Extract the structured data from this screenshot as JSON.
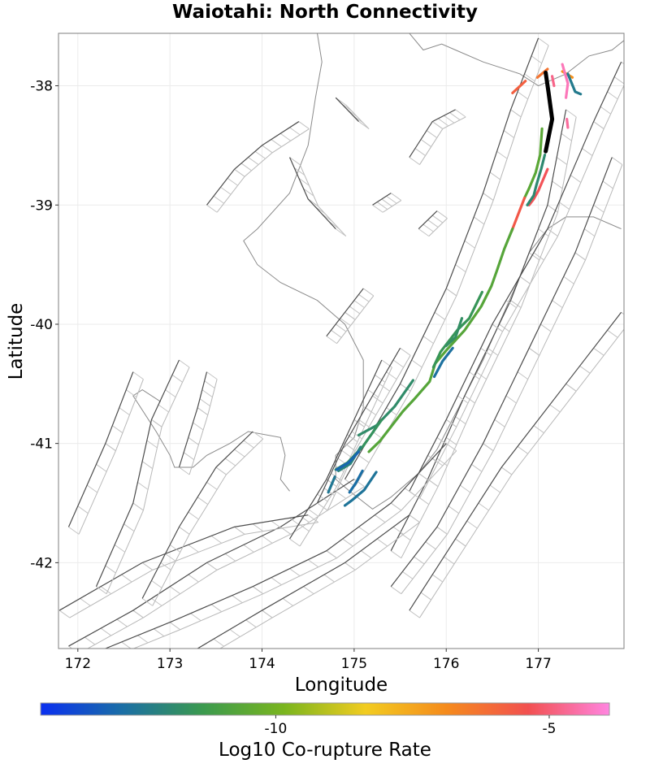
{
  "chart_data": {
    "type": "map",
    "title": "Waiotahi: North Connectivity",
    "xlabel": "Longitude",
    "ylabel": "Latitude",
    "xlim": [
      171.79,
      177.93
    ],
    "ylim": [
      -42.72,
      -37.56
    ],
    "x_ticks": [
      172,
      173,
      174,
      175,
      176,
      177
    ],
    "y_ticks": [
      -38,
      -39,
      -40,
      -41,
      -42
    ],
    "x_tick_labels": [
      "172",
      "173",
      "174",
      "175",
      "176",
      "177"
    ],
    "y_tick_labels": [
      "-38",
      "-39",
      "-40",
      "-41",
      "-42"
    ],
    "grid": true,
    "colorbar": {
      "title": "Log10 Co-rupture Rate",
      "range": [
        -14.3,
        -3.9
      ],
      "ticks": [
        -10,
        -5
      ],
      "tick_labels": [
        "-10",
        "-5"
      ],
      "colors": [
        "#0a2ff0",
        "#1a6ea6",
        "#3b9a4e",
        "#7ab51e",
        "#f2cc20",
        "#f58a1c",
        "#f25050",
        "#ff85e0"
      ]
    },
    "source_fault": {
      "name": "Waiotahi",
      "points": [
        [
          177.08,
          -37.89
        ],
        [
          177.11,
          -38.05
        ],
        [
          177.15,
          -38.28
        ],
        [
          177.08,
          -38.55
        ]
      ]
    },
    "corupture_faults": [
      {
        "rate": -5.8,
        "points": [
          [
            176.72,
            -38.06
          ],
          [
            176.86,
            -37.96
          ]
        ]
      },
      {
        "rate": -6.3,
        "points": [
          [
            176.99,
            -37.93
          ],
          [
            177.1,
            -37.86
          ]
        ]
      },
      {
        "rate": -7.0,
        "points": [
          [
            177.26,
            -37.88
          ],
          [
            177.37,
            -37.93
          ]
        ]
      },
      {
        "rate": -4.3,
        "points": [
          [
            177.26,
            -37.82
          ],
          [
            177.32,
            -37.98
          ],
          [
            177.3,
            -38.1
          ]
        ]
      },
      {
        "rate": -4.6,
        "points": [
          [
            177.31,
            -38.28
          ],
          [
            177.32,
            -38.35
          ]
        ]
      },
      {
        "rate": -12.4,
        "points": [
          [
            177.32,
            -37.9
          ],
          [
            177.4,
            -38.05
          ],
          [
            177.46,
            -38.07
          ]
        ]
      },
      {
        "rate": -4.8,
        "points": [
          [
            177.15,
            -37.92
          ],
          [
            177.17,
            -38.0
          ]
        ]
      },
      {
        "rate": -10.6,
        "points": [
          [
            177.04,
            -38.36
          ],
          [
            177.02,
            -38.58
          ],
          [
            176.97,
            -38.73
          ],
          [
            176.9,
            -38.86
          ],
          [
            176.85,
            -38.94
          ]
        ]
      },
      {
        "rate": -5.3,
        "points": [
          [
            177.1,
            -38.7
          ],
          [
            177.0,
            -38.88
          ],
          [
            176.95,
            -38.95
          ],
          [
            176.9,
            -39.0
          ]
        ]
      },
      {
        "rate": -5.6,
        "points": [
          [
            176.85,
            -38.94
          ],
          [
            176.77,
            -39.1
          ],
          [
            176.71,
            -39.22
          ]
        ]
      },
      {
        "rate": -11.9,
        "points": [
          [
            177.07,
            -38.58
          ],
          [
            177.03,
            -38.7
          ],
          [
            176.98,
            -38.83
          ],
          [
            176.95,
            -38.92
          ],
          [
            176.88,
            -39.0
          ]
        ]
      },
      {
        "rate": -10.7,
        "points": [
          [
            176.72,
            -39.2
          ],
          [
            176.63,
            -39.37
          ],
          [
            176.55,
            -39.55
          ],
          [
            176.49,
            -39.68
          ],
          [
            176.38,
            -39.85
          ],
          [
            176.2,
            -40.05
          ],
          [
            176.0,
            -40.22
          ],
          [
            175.88,
            -40.33
          ],
          [
            175.82,
            -40.48
          ],
          [
            175.65,
            -40.63
          ],
          [
            175.53,
            -40.73
          ],
          [
            175.4,
            -40.86
          ],
          [
            175.28,
            -40.98
          ],
          [
            175.16,
            -41.07
          ]
        ]
      },
      {
        "rate": -11.5,
        "points": [
          [
            176.39,
            -39.73
          ],
          [
            176.25,
            -39.95
          ],
          [
            176.12,
            -40.05
          ],
          [
            175.94,
            -40.23
          ],
          [
            175.86,
            -40.36
          ]
        ]
      },
      {
        "rate": -11.7,
        "points": [
          [
            176.17,
            -39.95
          ],
          [
            176.1,
            -40.11
          ],
          [
            176.0,
            -40.18
          ]
        ]
      },
      {
        "rate": -11.8,
        "points": [
          [
            175.64,
            -40.47
          ],
          [
            175.44,
            -40.69
          ],
          [
            175.24,
            -40.85
          ],
          [
            175.05,
            -40.93
          ]
        ]
      },
      {
        "rate": -11.6,
        "points": [
          [
            175.3,
            -40.8
          ],
          [
            175.1,
            -41.02
          ],
          [
            174.93,
            -41.16
          ],
          [
            174.8,
            -41.22
          ]
        ]
      },
      {
        "rate": -12.1,
        "points": [
          [
            175.07,
            -41.03
          ],
          [
            174.96,
            -41.17
          ],
          [
            174.83,
            -41.23
          ]
        ]
      },
      {
        "rate": -13.0,
        "points": [
          [
            175.05,
            -41.07
          ],
          [
            174.94,
            -41.16
          ],
          [
            174.81,
            -41.22
          ]
        ]
      },
      {
        "rate": -12.8,
        "points": [
          [
            175.09,
            -41.23
          ],
          [
            175.02,
            -41.33
          ],
          [
            174.95,
            -41.41
          ]
        ]
      },
      {
        "rate": -12.6,
        "points": [
          [
            175.24,
            -41.24
          ],
          [
            175.11,
            -41.39
          ],
          [
            174.97,
            -41.48
          ],
          [
            174.9,
            -41.52
          ]
        ]
      },
      {
        "rate": -12.5,
        "points": [
          [
            174.79,
            -41.28
          ],
          [
            174.72,
            -41.41
          ]
        ]
      },
      {
        "rate": -12.7,
        "points": [
          [
            176.07,
            -40.2
          ],
          [
            175.96,
            -40.31
          ],
          [
            175.87,
            -40.44
          ]
        ]
      }
    ],
    "other_faults": [
      [
        [
          177.0,
          -37.6
        ],
        [
          176.7,
          -38.2
        ],
        [
          176.4,
          -38.9
        ],
        [
          176.0,
          -39.7
        ],
        [
          175.5,
          -40.5
        ],
        [
          174.9,
          -41.3
        ]
      ],
      [
        [
          177.3,
          -38.2
        ],
        [
          177.1,
          -39.0
        ],
        [
          176.7,
          -39.8
        ],
        [
          176.2,
          -40.6
        ],
        [
          175.8,
          -41.3
        ],
        [
          175.4,
          -41.9
        ]
      ],
      [
        [
          177.8,
          -38.6
        ],
        [
          177.4,
          -39.4
        ],
        [
          176.9,
          -40.2
        ],
        [
          176.4,
          -41.0
        ],
        [
          175.9,
          -41.7
        ],
        [
          175.4,
          -42.2
        ]
      ],
      [
        [
          177.9,
          -39.9
        ],
        [
          177.3,
          -40.5
        ],
        [
          176.6,
          -41.2
        ],
        [
          176.1,
          -41.8
        ],
        [
          175.6,
          -42.4
        ]
      ],
      [
        [
          177.9,
          -37.8
        ],
        [
          177.6,
          -38.3
        ],
        [
          177.1,
          -39.2
        ],
        [
          176.5,
          -40.0
        ],
        [
          176.0,
          -40.8
        ],
        [
          175.6,
          -41.4
        ]
      ],
      [
        [
          171.9,
          -42.7
        ],
        [
          172.6,
          -42.4
        ],
        [
          173.4,
          -42.0
        ],
        [
          174.2,
          -41.7
        ],
        [
          175.0,
          -41.3
        ]
      ],
      [
        [
          171.8,
          -42.4
        ],
        [
          172.7,
          -42.0
        ],
        [
          173.7,
          -41.7
        ],
        [
          174.5,
          -41.6
        ]
      ],
      [
        [
          172.3,
          -42.72
        ],
        [
          173.0,
          -42.5
        ],
        [
          173.9,
          -42.2
        ],
        [
          174.7,
          -41.9
        ],
        [
          175.4,
          -41.5
        ],
        [
          176.0,
          -41.0
        ]
      ],
      [
        [
          173.3,
          -42.72
        ],
        [
          174.0,
          -42.4
        ],
        [
          174.9,
          -42.0
        ],
        [
          175.6,
          -41.6
        ]
      ],
      [
        [
          171.9,
          -41.7
        ],
        [
          172.3,
          -41.0
        ],
        [
          172.6,
          -40.4
        ]
      ],
      [
        [
          172.2,
          -42.2
        ],
        [
          172.6,
          -41.5
        ],
        [
          172.8,
          -40.8
        ],
        [
          173.1,
          -40.3
        ]
      ],
      [
        [
          172.7,
          -42.3
        ],
        [
          173.1,
          -41.7
        ],
        [
          173.5,
          -41.2
        ],
        [
          173.9,
          -40.9
        ]
      ],
      [
        [
          173.1,
          -41.2
        ],
        [
          173.3,
          -40.7
        ],
        [
          173.4,
          -40.4
        ]
      ],
      [
        [
          174.3,
          -41.8
        ],
        [
          174.7,
          -41.3
        ],
        [
          175.0,
          -40.8
        ],
        [
          175.3,
          -40.3
        ]
      ],
      [
        [
          174.6,
          -41.5
        ],
        [
          174.9,
          -41.0
        ],
        [
          175.2,
          -40.6
        ],
        [
          175.5,
          -40.2
        ]
      ],
      [
        [
          174.7,
          -40.1
        ],
        [
          174.9,
          -39.9
        ],
        [
          175.1,
          -39.7
        ]
      ],
      [
        [
          175.6,
          -38.6
        ],
        [
          175.85,
          -38.3
        ],
        [
          176.1,
          -38.2
        ]
      ],
      [
        [
          174.3,
          -38.6
        ],
        [
          174.5,
          -38.95
        ],
        [
          174.8,
          -39.2
        ]
      ],
      [
        [
          174.8,
          -38.1
        ],
        [
          175.05,
          -38.3
        ]
      ],
      [
        [
          173.4,
          -39.0
        ],
        [
          173.7,
          -38.7
        ],
        [
          174.0,
          -38.5
        ],
        [
          174.4,
          -38.3
        ]
      ],
      [
        [
          175.2,
          -39.0
        ],
        [
          175.4,
          -38.9
        ]
      ],
      [
        [
          175.7,
          -39.2
        ],
        [
          175.9,
          -39.05
        ]
      ]
    ],
    "coastline": [
      [
        [
          174.6,
          -37.56
        ],
        [
          174.65,
          -37.8
        ],
        [
          174.58,
          -38.1
        ],
        [
          174.5,
          -38.5
        ],
        [
          174.3,
          -38.9
        ],
        [
          173.95,
          -39.2
        ],
        [
          173.8,
          -39.3
        ],
        [
          173.95,
          -39.5
        ],
        [
          174.2,
          -39.65
        ],
        [
          174.6,
          -39.8
        ],
        [
          174.9,
          -40.0
        ],
        [
          175.1,
          -40.3
        ],
        [
          175.1,
          -40.7
        ],
        [
          175.0,
          -40.95
        ],
        [
          174.8,
          -41.1
        ],
        [
          174.8,
          -41.3
        ],
        [
          174.95,
          -41.4
        ],
        [
          175.2,
          -41.55
        ],
        [
          175.4,
          -41.45
        ],
        [
          175.7,
          -41.25
        ],
        [
          175.9,
          -41.05
        ],
        [
          176.1,
          -40.75
        ],
        [
          176.4,
          -40.3
        ],
        [
          176.6,
          -39.95
        ],
        [
          176.8,
          -39.6
        ],
        [
          176.9,
          -39.4
        ],
        [
          177.1,
          -39.2
        ],
        [
          177.3,
          -39.1
        ],
        [
          177.6,
          -39.1
        ],
        [
          177.9,
          -39.2
        ]
      ],
      [
        [
          175.6,
          -37.56
        ],
        [
          175.75,
          -37.7
        ],
        [
          175.95,
          -37.65
        ],
        [
          176.1,
          -37.7
        ],
        [
          176.4,
          -37.8
        ],
        [
          176.8,
          -37.9
        ],
        [
          177.0,
          -38.0
        ],
        [
          177.3,
          -37.9
        ],
        [
          177.55,
          -37.75
        ],
        [
          177.8,
          -37.7
        ],
        [
          177.93,
          -37.62
        ]
      ],
      [
        [
          172.9,
          -40.65
        ],
        [
          172.7,
          -40.55
        ],
        [
          172.6,
          -40.6
        ],
        [
          172.85,
          -40.9
        ],
        [
          173.0,
          -41.1
        ],
        [
          173.05,
          -41.2
        ],
        [
          173.25,
          -41.2
        ],
        [
          173.4,
          -41.1
        ],
        [
          173.65,
          -41.0
        ],
        [
          173.85,
          -40.9
        ],
        [
          174.2,
          -40.95
        ],
        [
          174.25,
          -41.1
        ],
        [
          174.2,
          -41.3
        ],
        [
          174.3,
          -41.4
        ]
      ]
    ]
  }
}
